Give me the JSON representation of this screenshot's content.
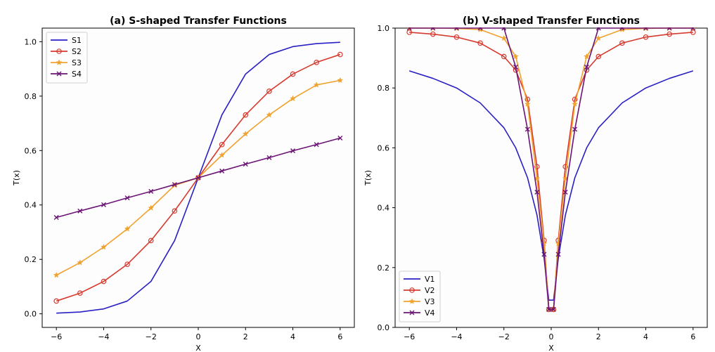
{
  "chart_data": [
    {
      "type": "line",
      "title": "(a) S-shaped Transfer Functions",
      "xlabel": "X",
      "ylabel": "T(x)",
      "xlim": [
        -6.6,
        6.6
      ],
      "ylim": [
        -0.05,
        1.05
      ],
      "xticks": [
        -6,
        -4,
        -2,
        0,
        2,
        4,
        6
      ],
      "yticks": [
        0.0,
        0.2,
        0.4,
        0.6,
        0.8,
        1.0
      ],
      "xtick_labels": [
        "−6",
        "−4",
        "−2",
        "0",
        "2",
        "4",
        "6"
      ],
      "ytick_labels": [
        "0.0",
        "0.2",
        "0.4",
        "0.6",
        "0.8",
        "1.0"
      ],
      "legend_position": "top-left",
      "x": [
        -6.0,
        -5.0,
        -4.0,
        -3.0,
        -2.0,
        -1.0,
        0.0,
        1.0,
        2.0,
        3.0,
        4.0,
        5.0,
        6.0
      ],
      "series": [
        {
          "name": "S1",
          "color": "#2a1fc4",
          "marker": "none",
          "values": [
            0.0025,
            0.0067,
            0.018,
            0.047,
            0.119,
            0.269,
            0.5,
            0.731,
            0.881,
            0.953,
            0.982,
            0.993,
            0.998
          ]
        },
        {
          "name": "S2",
          "color": "#d63a2f",
          "marker": "circle",
          "values": [
            0.047,
            0.076,
            0.119,
            0.182,
            0.269,
            0.378,
            0.5,
            0.622,
            0.731,
            0.818,
            0.881,
            0.924,
            0.953
          ]
        },
        {
          "name": "S3",
          "color": "#f0a22e",
          "marker": "star",
          "values": [
            0.142,
            0.188,
            0.245,
            0.312,
            0.389,
            0.472,
            0.5,
            0.583,
            0.661,
            0.731,
            0.791,
            0.841,
            0.858
          ]
        },
        {
          "name": "S4",
          "color": "#6b1475",
          "marker": "x",
          "values": [
            0.354,
            0.378,
            0.401,
            0.426,
            0.45,
            0.475,
            0.5,
            0.525,
            0.55,
            0.574,
            0.599,
            0.622,
            0.646
          ]
        }
      ]
    },
    {
      "type": "line",
      "title": "(b) V-shaped Transfer Functions",
      "xlabel": "X",
      "ylabel": "T(x)",
      "xlim": [
        -6.6,
        6.6
      ],
      "ylim": [
        0.0,
        1.0
      ],
      "xticks": [
        -6,
        -4,
        -2,
        0,
        2,
        4,
        6
      ],
      "yticks": [
        0.0,
        0.2,
        0.4,
        0.6,
        0.8,
        1.0
      ],
      "xtick_labels": [
        "−6",
        "−4",
        "−2",
        "0",
        "2",
        "4",
        "6"
      ],
      "ytick_labels": [
        "0.0",
        "0.2",
        "0.4",
        "0.6",
        "0.8",
        "1.0"
      ],
      "legend_position": "bottom-left",
      "x": [
        -6.0,
        -5.0,
        -4.0,
        -3.0,
        -2.0,
        -1.5,
        -1.0,
        -0.6,
        -0.3,
        -0.1,
        0.1,
        0.3,
        0.6,
        1.0,
        1.5,
        2.0,
        3.0,
        4.0,
        5.0,
        6.0
      ],
      "series": [
        {
          "name": "V1",
          "color": "#2a1fc4",
          "marker": "none",
          "values": [
            0.857,
            0.832,
            0.8,
            0.75,
            0.667,
            0.6,
            0.5,
            0.375,
            0.231,
            0.091,
            0.091,
            0.231,
            0.375,
            0.5,
            0.6,
            0.667,
            0.75,
            0.8,
            0.832,
            0.857
          ]
        },
        {
          "name": "V2",
          "color": "#d63a2f",
          "marker": "circle",
          "values": [
            0.986,
            0.98,
            0.97,
            0.95,
            0.905,
            0.86,
            0.762,
            0.537,
            0.291,
            0.06,
            0.06,
            0.291,
            0.537,
            0.762,
            0.86,
            0.905,
            0.95,
            0.97,
            0.98,
            0.986
          ]
        },
        {
          "name": "V3",
          "color": "#f0a22e",
          "marker": "star",
          "values": [
            1.0,
            1.0,
            0.999,
            0.995,
            0.966,
            0.905,
            0.746,
            0.498,
            0.28,
            0.06,
            0.06,
            0.28,
            0.498,
            0.746,
            0.905,
            0.966,
            0.995,
            0.999,
            1.0,
            1.0
          ]
        },
        {
          "name": "V4",
          "color": "#6b1475",
          "marker": "x",
          "values": [
            1.0,
            1.0,
            1.0,
            1.0,
            1.0,
            0.87,
            0.662,
            0.452,
            0.244,
            0.06,
            0.06,
            0.244,
            0.452,
            0.662,
            0.87,
            1.0,
            1.0,
            1.0,
            1.0,
            1.0
          ]
        }
      ]
    }
  ]
}
